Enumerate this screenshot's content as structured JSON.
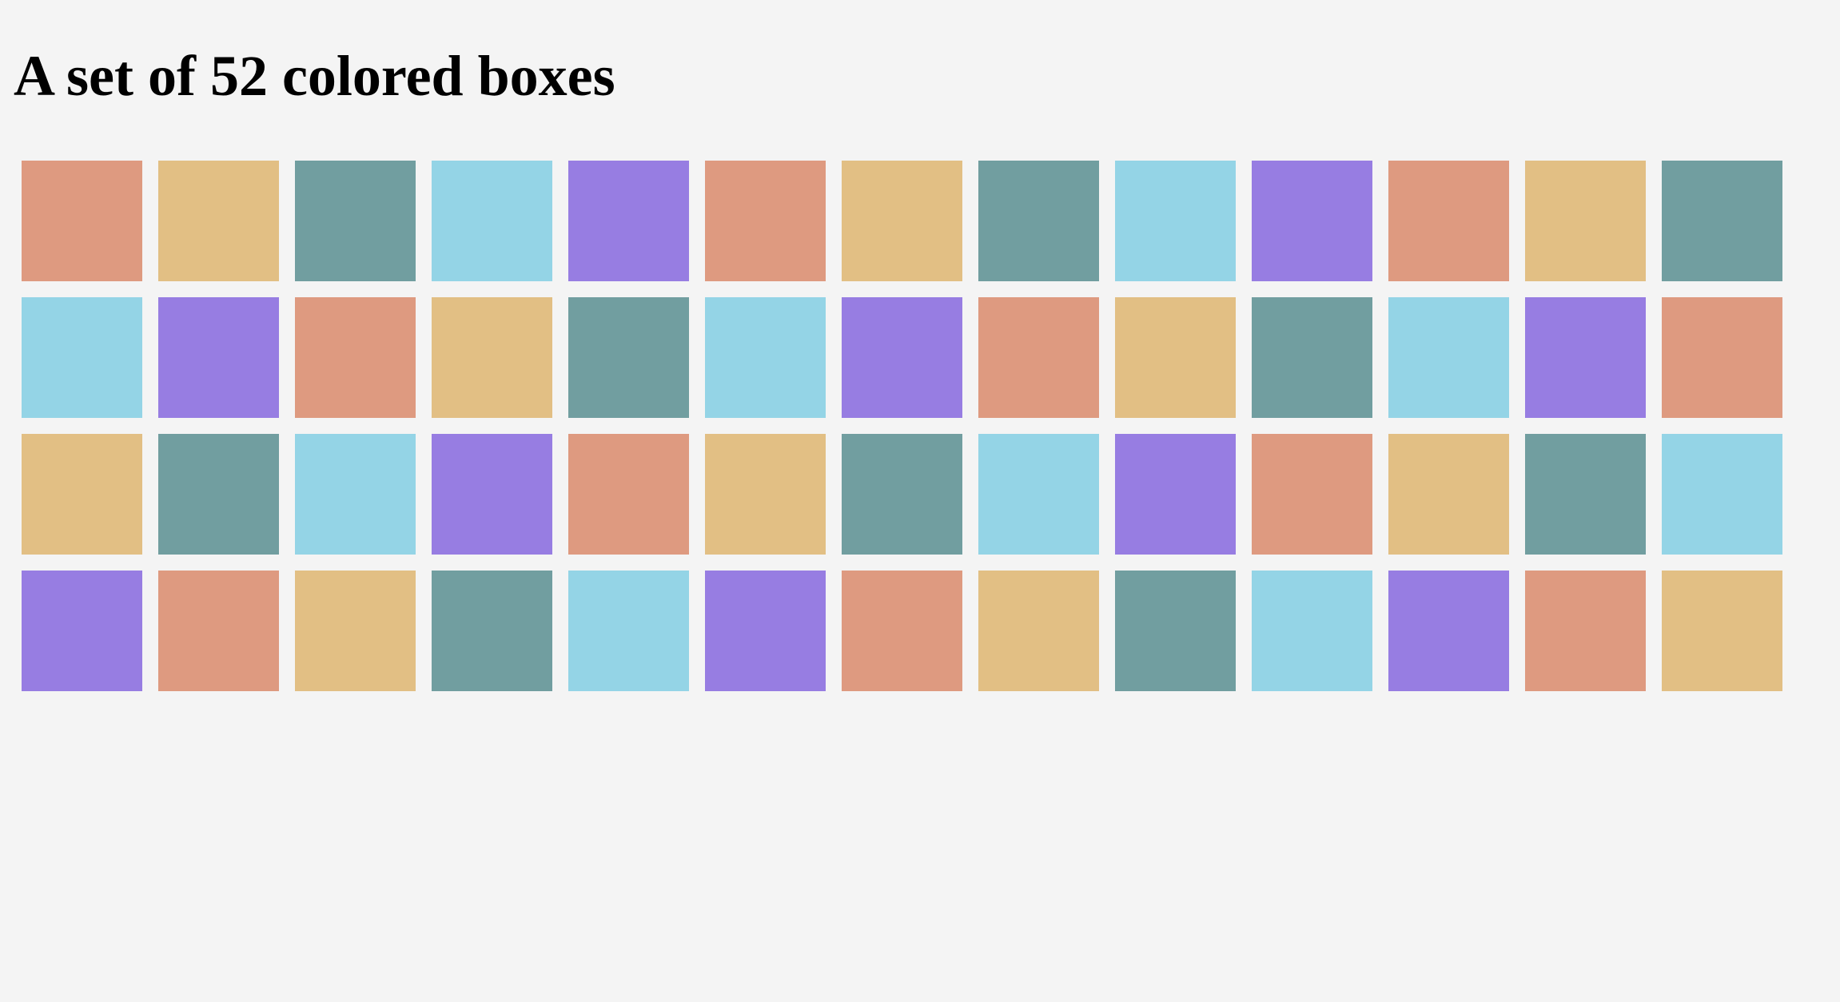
{
  "page": {
    "title": "A set of 52 colored boxes"
  },
  "palette": {
    "salmon": "#de9a80",
    "sand": "#e2bf84",
    "teal": "#719ea0",
    "sky": "#94d4e6",
    "violet": "#977de2"
  },
  "boxes": [
    "salmon",
    "sand",
    "teal",
    "sky",
    "violet",
    "salmon",
    "sand",
    "teal",
    "sky",
    "violet",
    "salmon",
    "sand",
    "teal",
    "sky",
    "violet",
    "salmon",
    "sand",
    "teal",
    "sky",
    "violet",
    "salmon",
    "sand",
    "teal",
    "sky",
    "violet",
    "salmon",
    "sand",
    "teal",
    "sky",
    "violet",
    "salmon",
    "sand",
    "teal",
    "sky",
    "violet",
    "salmon",
    "sand",
    "teal",
    "sky",
    "violet",
    "salmon",
    "sand",
    "teal",
    "sky",
    "violet",
    "salmon",
    "sand",
    "teal",
    "sky",
    "violet",
    "salmon",
    "sand"
  ]
}
